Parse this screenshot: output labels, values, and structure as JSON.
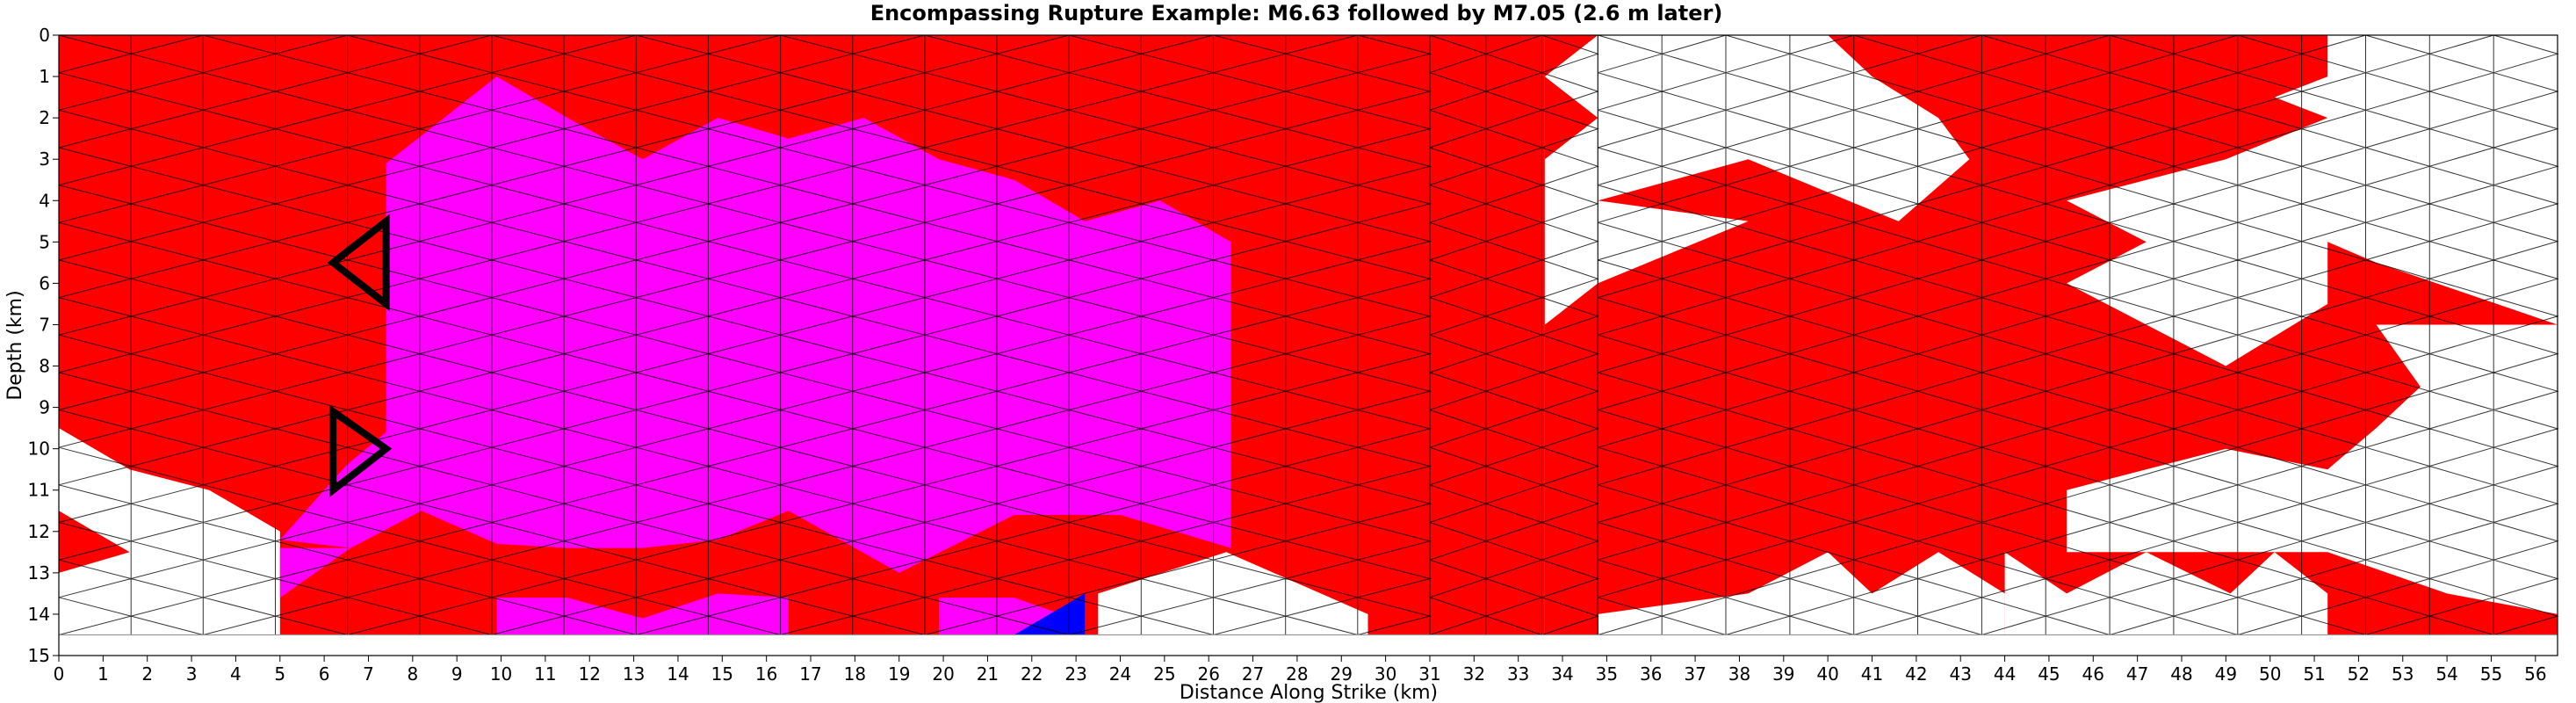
{
  "chart_data": {
    "type": "heatmap",
    "title": "Encompassing Rupture Example: M6.63 followed by M7.05 (2.6 m later)",
    "xlabel": "Distance Along Strike (km)",
    "ylabel": "Depth (km)",
    "xlim": [
      0,
      56.5
    ],
    "ylim": [
      0,
      15
    ],
    "y_inverted": true,
    "xticks": [
      "0",
      "1",
      "2",
      "3",
      "4",
      "5",
      "6",
      "7",
      "8",
      "9",
      "10",
      "11",
      "12",
      "13",
      "14",
      "15",
      "16",
      "17",
      "18",
      "19",
      "20",
      "21",
      "22",
      "23",
      "24",
      "25",
      "26",
      "27",
      "28",
      "29",
      "30",
      "31",
      "32",
      "33",
      "34",
      "35",
      "36",
      "37",
      "38",
      "39",
      "40",
      "41",
      "42",
      "43",
      "44",
      "45",
      "46",
      "47",
      "48",
      "49",
      "50",
      "51",
      "52",
      "53",
      "54",
      "55",
      "56"
    ],
    "yticks": [
      "0",
      "1",
      "2",
      "3",
      "4",
      "5",
      "6",
      "7",
      "8",
      "9",
      "10",
      "11",
      "12",
      "13",
      "14",
      "15"
    ],
    "colors": {
      "first_event": "#ff0000",
      "second_event": "#ff00ff",
      "overlap": "#0000ff",
      "unruptured": "#ffffff",
      "mesh": "#a9a9a9",
      "ruptured_edge": "#000000"
    },
    "mesh": {
      "depth_max_km": 14.5,
      "sections": [
        {
          "x_start": 0,
          "x_end": 31,
          "columns": 19,
          "rows": 16
        },
        {
          "x_start": 31,
          "x_end": 34.8,
          "columns": 3,
          "rows": 16
        },
        {
          "x_start": 34.8,
          "x_end": 56.5,
          "columns": 15,
          "rows": 16
        }
      ]
    },
    "regions": [
      {
        "color": "first_event",
        "polygons": [
          [
            [
              0,
              0
            ],
            [
              31,
              0
            ],
            [
              31,
              14.5
            ],
            [
              0,
              14.5
            ]
          ],
          [
            [
              31,
              0
            ],
            [
              33.6,
              0
            ],
            [
              33.6,
              14.5
            ],
            [
              31,
              14.5
            ]
          ],
          [
            [
              33.6,
              0
            ],
            [
              34.8,
              0
            ],
            [
              34.8,
              14.5
            ],
            [
              33.6,
              14.5
            ]
          ],
          [
            [
              34.8,
              0
            ],
            [
              56.5,
              0
            ],
            [
              56.5,
              14.5
            ],
            [
              34.8,
              14.5
            ]
          ]
        ]
      },
      {
        "color": "unruptured",
        "polygons": [
          [
            [
              0,
              9.5
            ],
            [
              1.6,
              10.5
            ],
            [
              3.4,
              11
            ],
            [
              5,
              12
            ],
            [
              5,
              14.5
            ],
            [
              0,
              14.5
            ],
            [
              0,
              13
            ],
            [
              1.6,
              12.5
            ],
            [
              0,
              11.5
            ]
          ],
          [
            [
              26.4,
              12.5
            ],
            [
              29.6,
              14
            ],
            [
              29.6,
              14.5
            ],
            [
              23.5,
              14.5
            ],
            [
              23.5,
              13.5
            ]
          ],
          [
            [
              33.6,
              1
            ],
            [
              34.8,
              0
            ],
            [
              40,
              0
            ],
            [
              41,
              1
            ],
            [
              42.5,
              2
            ],
            [
              43.2,
              3
            ],
            [
              41.6,
              4.5
            ],
            [
              40,
              3.8
            ],
            [
              38.2,
              3
            ],
            [
              34.8,
              4
            ],
            [
              38.2,
              4.5
            ],
            [
              34.8,
              6
            ],
            [
              33.6,
              7
            ],
            [
              33.6,
              3
            ],
            [
              34.8,
              2
            ]
          ],
          [
            [
              34.8,
              14
            ],
            [
              38.2,
              13.5
            ],
            [
              40,
              12.5
            ],
            [
              41,
              13.5
            ],
            [
              42.5,
              12.5
            ],
            [
              44,
              13.5
            ],
            [
              44,
              14.5
            ],
            [
              34.8,
              14.5
            ]
          ],
          [
            [
              44,
              12.5
            ],
            [
              45.4,
              13.5
            ],
            [
              47.2,
              12.5
            ],
            [
              49.1,
              13.5
            ],
            [
              50.1,
              12.5
            ],
            [
              51.3,
              13.5
            ],
            [
              51.3,
              14.5
            ],
            [
              44,
              14.5
            ]
          ],
          [
            [
              45.4,
              11
            ],
            [
              49,
              10
            ],
            [
              51.3,
              10.5
            ],
            [
              52.4,
              9.5
            ],
            [
              53.4,
              8.5
            ],
            [
              52.4,
              7
            ],
            [
              56.5,
              7
            ],
            [
              56.5,
              14
            ],
            [
              54,
              13.5
            ],
            [
              51.3,
              12.5
            ],
            [
              49.1,
              12.5
            ],
            [
              45.4,
              12.5
            ]
          ],
          [
            [
              45.4,
              6
            ],
            [
              47.2,
              5
            ],
            [
              45.4,
              4
            ],
            [
              47.2,
              3.5
            ],
            [
              49,
              3
            ],
            [
              51.3,
              2
            ],
            [
              50.1,
              1.5
            ],
            [
              51.3,
              1
            ],
            [
              51.3,
              0
            ],
            [
              56.5,
              0
            ],
            [
              56.5,
              7
            ],
            [
              52.4,
              5.5
            ],
            [
              51.3,
              5
            ],
            [
              51.3,
              6.5
            ],
            [
              49,
              8
            ]
          ]
        ]
      },
      {
        "color": "second_event",
        "polygons": [
          [
            [
              7.4,
              3.1
            ],
            [
              9.9,
              1
            ],
            [
              11.5,
              2
            ],
            [
              13.2,
              3
            ],
            [
              14.9,
              2
            ],
            [
              16.5,
              2.5
            ],
            [
              18.2,
              2
            ],
            [
              19.9,
              3
            ],
            [
              21.6,
              3.5
            ],
            [
              23.2,
              4.5
            ],
            [
              24.9,
              4
            ],
            [
              26.5,
              5
            ],
            [
              26.5,
              12.4
            ],
            [
              24,
              11.6
            ],
            [
              21.6,
              11.6
            ],
            [
              19,
              13
            ],
            [
              16.5,
              11.5
            ],
            [
              14.9,
              12.2
            ],
            [
              13.2,
              12.4
            ],
            [
              11.5,
              12.4
            ],
            [
              9.9,
              12.3
            ],
            [
              8.2,
              11.5
            ],
            [
              6.6,
              12.4
            ],
            [
              5,
              12.2
            ],
            [
              6.5,
              10.4
            ],
            [
              7.4,
              9.6
            ]
          ],
          [
            [
              5,
              12.4
            ],
            [
              6.6,
              12.4
            ],
            [
              5,
              13.6
            ]
          ],
          [
            [
              9.9,
              13.6
            ],
            [
              11.5,
              13.6
            ],
            [
              13.2,
              14.1
            ],
            [
              14.9,
              13.5
            ],
            [
              16.5,
              13.6
            ],
            [
              16.5,
              14.5
            ],
            [
              9.9,
              14.5
            ]
          ],
          [
            [
              19.9,
              13.6
            ],
            [
              21.6,
              13.6
            ],
            [
              23.2,
              14.2
            ],
            [
              23.2,
              14.5
            ],
            [
              19.9,
              14.5
            ]
          ]
        ]
      },
      {
        "color": "overlap",
        "polygons": [
          [
            [
              21.6,
              14.5
            ],
            [
              23.2,
              13.5
            ],
            [
              23.2,
              14.5
            ]
          ]
        ]
      }
    ],
    "markers": [
      {
        "type": "triangle",
        "points": [
          [
            6.2,
            5.5
          ],
          [
            7.4,
            4.5
          ],
          [
            7.4,
            6.5
          ]
        ]
      },
      {
        "type": "triangle",
        "points": [
          [
            6.2,
            9.1
          ],
          [
            6.2,
            11
          ],
          [
            7.4,
            10
          ]
        ]
      }
    ]
  }
}
